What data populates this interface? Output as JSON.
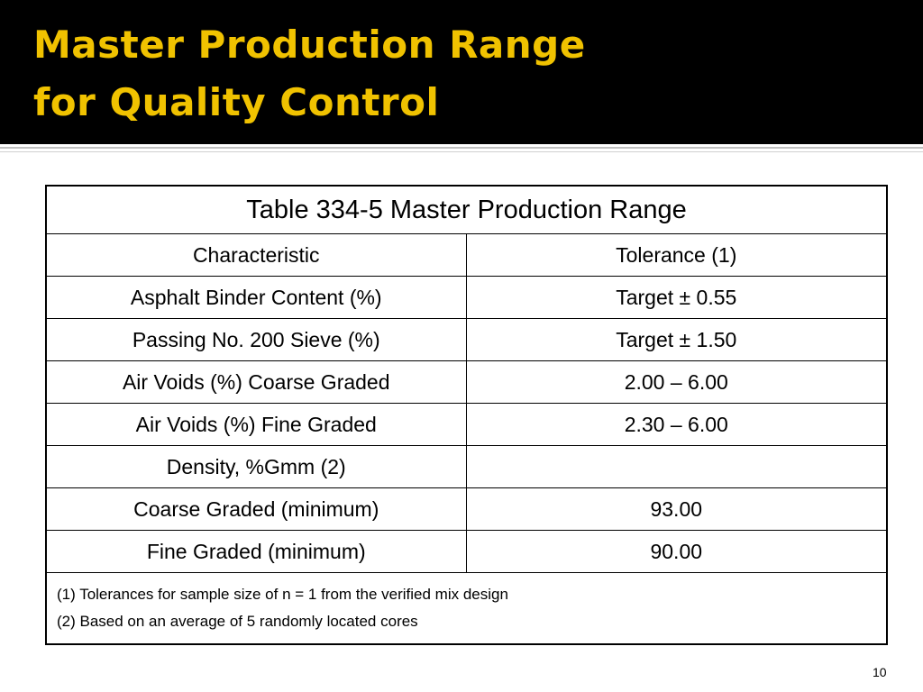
{
  "slide": {
    "title_line1": "Master Production Range",
    "title_line2": "for Quality Control",
    "page_number": "10",
    "colors": {
      "title_bar": "#000000",
      "title_text": "#f0c200"
    }
  },
  "table": {
    "caption": "Table 334-5  Master Production Range",
    "headers": [
      "Characteristic",
      "Tolerance (1)"
    ],
    "rows": [
      [
        "Asphalt Binder Content (%)",
        "Target ± 0.55"
      ],
      [
        "Passing No. 200 Sieve (%)",
        "Target ± 1.50"
      ],
      [
        "Air Voids (%) Coarse Graded",
        "2.00 – 6.00"
      ],
      [
        "Air Voids (%) Fine Graded",
        "2.30 – 6.00"
      ],
      [
        "Density, %Gmm (2)",
        ""
      ],
      [
        "Coarse Graded (minimum)",
        "93.00"
      ],
      [
        "Fine Graded (minimum)",
        "90.00"
      ]
    ],
    "notes": [
      "(1) Tolerances for sample size of n = 1 from the verified mix design",
      "(2) Based on an average of 5 randomly located cores"
    ]
  }
}
